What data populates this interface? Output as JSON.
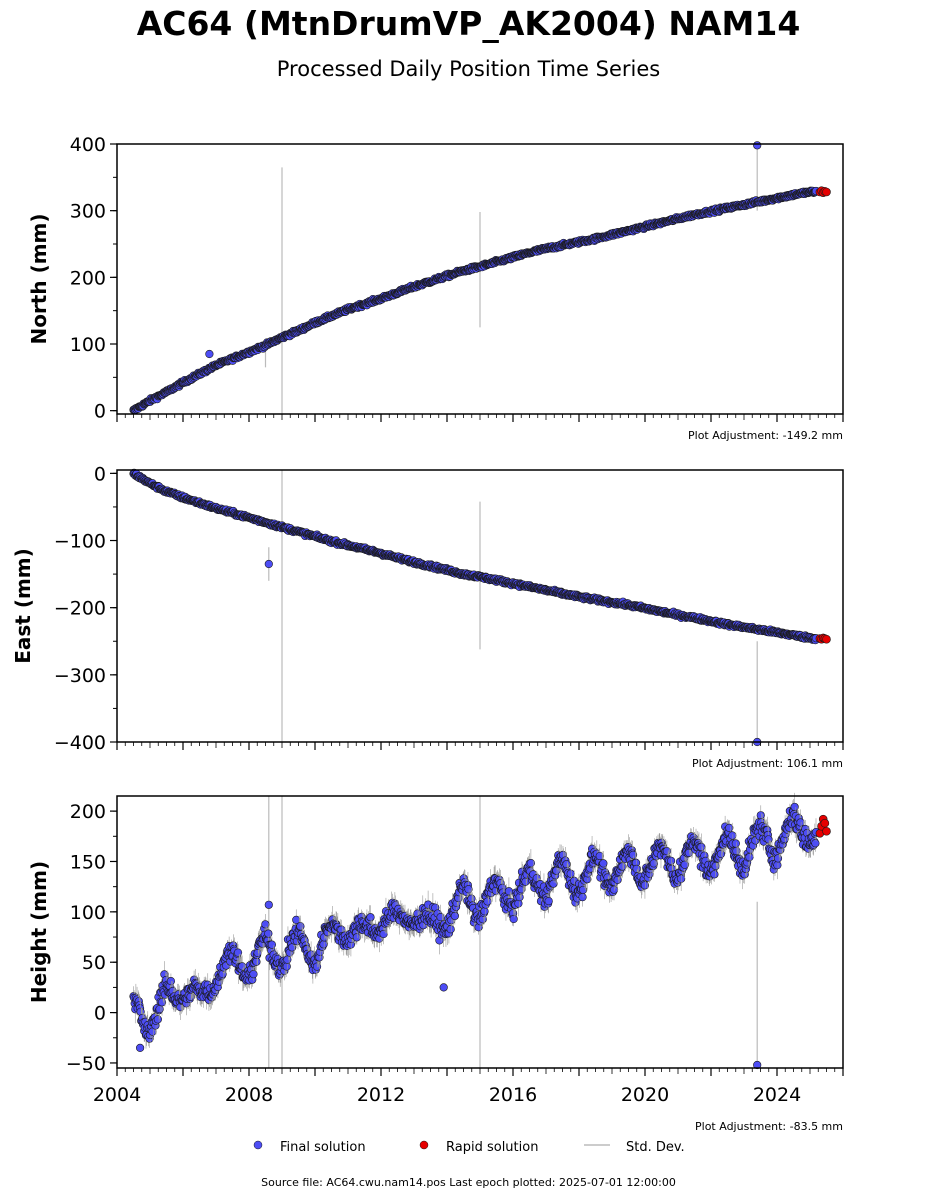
{
  "title": "AC64 (MtnDrumVP_AK2004) NAM14",
  "subtitle": "Processed Daily Position Time Series",
  "source_text": "Source file: AC64.cwu.nam14.pos  Last epoch plotted: 2025-07-01 12:00:00",
  "legend": {
    "final_label": "Final solution",
    "rapid_label": "Rapid solution",
    "std_label": "Std. Dev."
  },
  "colors": {
    "final": "#4d4df5",
    "rapid": "#e60000",
    "stddev": "#bbbbbb",
    "edge": "#1a1a1a"
  },
  "chart_data": [
    {
      "type": "scatter",
      "ylabel": "North (mm)",
      "adjustment": "Plot Adjustment: -149.2 mm",
      "xlim": [
        2004,
        2026
      ],
      "ylim": [
        -5,
        400
      ],
      "yticks": [
        0,
        100,
        200,
        300,
        400
      ],
      "xticks": [
        2004,
        2008,
        2012,
        2016,
        2020,
        2024
      ],
      "series": [
        {
          "name": "Final solution",
          "x": [
            2004.5,
            2005,
            2005.5,
            2006,
            2006.5,
            2007,
            2007.5,
            2008,
            2008.5,
            2009,
            2009.5,
            2010,
            2010.5,
            2011,
            2011.5,
            2012,
            2012.5,
            2013,
            2013.5,
            2014,
            2014.5,
            2015,
            2015.5,
            2016,
            2016.5,
            2017,
            2017.5,
            2018,
            2018.5,
            2019,
            2019.5,
            2020,
            2020.5,
            2021,
            2021.5,
            2022,
            2022.5,
            2023,
            2023.5,
            2024,
            2024.5,
            2025,
            2025.2
          ],
          "y": [
            0,
            15,
            28,
            42,
            55,
            68,
            78,
            88,
            98,
            110,
            120,
            132,
            142,
            152,
            160,
            168,
            177,
            186,
            194,
            202,
            210,
            216,
            223,
            230,
            237,
            243,
            248,
            253,
            258,
            264,
            270,
            276,
            282,
            288,
            294,
            299,
            304,
            309,
            314,
            319,
            324,
            328,
            328
          ]
        },
        {
          "name": "Rapid solution",
          "x": [
            2025.3,
            2025.35,
            2025.4,
            2025.45,
            2025.5
          ],
          "y": [
            328,
            330,
            327,
            329,
            328
          ]
        }
      ],
      "outliers": [
        {
          "x": 2006.8,
          "y": 85
        },
        {
          "x": 2023.4,
          "y": 398
        }
      ],
      "stddev_bars": [
        {
          "x": 2009.0,
          "low": -5,
          "high": 365
        },
        {
          "x": 2015.0,
          "low": 125,
          "high": 298
        },
        {
          "x": 2023.4,
          "low": 300,
          "high": 400
        },
        {
          "x": 2008.5,
          "low": 65,
          "high": 108
        }
      ]
    },
    {
      "type": "scatter",
      "ylabel": "East (mm)",
      "adjustment": "Plot Adjustment: 106.1 mm",
      "xlim": [
        2004,
        2026
      ],
      "ylim": [
        -400,
        5
      ],
      "yticks": [
        0,
        -100,
        -200,
        -300,
        -400
      ],
      "xticks": [
        2004,
        2008,
        2012,
        2016,
        2020,
        2024
      ],
      "series": [
        {
          "name": "Final solution",
          "x": [
            2004.5,
            2005,
            2005.5,
            2006,
            2006.5,
            2007,
            2007.5,
            2008,
            2008.5,
            2009,
            2009.5,
            2010,
            2010.5,
            2011,
            2011.5,
            2012,
            2012.5,
            2013,
            2013.5,
            2014,
            2014.5,
            2015,
            2015.5,
            2016,
            2016.5,
            2017,
            2017.5,
            2018,
            2018.5,
            2019,
            2019.5,
            2020,
            2020.5,
            2021,
            2021.5,
            2022,
            2022.5,
            2023,
            2023.5,
            2024,
            2024.5,
            2025,
            2025.2
          ],
          "y": [
            0,
            -15,
            -27,
            -36,
            -44,
            -52,
            -59,
            -66,
            -73,
            -80,
            -87,
            -94,
            -101,
            -107,
            -113,
            -119,
            -126,
            -132,
            -138,
            -144,
            -150,
            -154,
            -159,
            -164,
            -169,
            -174,
            -179,
            -184,
            -188,
            -192,
            -196,
            -201,
            -206,
            -211,
            -215,
            -220,
            -225,
            -229,
            -233,
            -237,
            -241,
            -245,
            -246
          ]
        },
        {
          "name": "Rapid solution",
          "x": [
            2025.3,
            2025.35,
            2025.4,
            2025.45,
            2025.5
          ],
          "y": [
            -246,
            -247,
            -245,
            -246,
            -247
          ]
        }
      ],
      "outliers": [
        {
          "x": 2008.6,
          "y": -135
        },
        {
          "x": 2023.4,
          "y": -400
        }
      ],
      "stddev_bars": [
        {
          "x": 2009.0,
          "low": -400,
          "high": 5
        },
        {
          "x": 2015.0,
          "low": -262,
          "high": -42
        },
        {
          "x": 2008.6,
          "low": -160,
          "high": -110
        },
        {
          "x": 2023.4,
          "low": -400,
          "high": -250
        }
      ]
    },
    {
      "type": "scatter",
      "ylabel": "Height (mm)",
      "adjustment": "Plot Adjustment: -83.5 mm",
      "xlim": [
        2004,
        2026
      ],
      "ylim": [
        -55,
        215
      ],
      "yticks": [
        -50,
        0,
        50,
        100,
        150,
        200
      ],
      "xticks": [
        2004,
        2008,
        2012,
        2016,
        2020,
        2024
      ],
      "series": [
        {
          "name": "Final solution",
          "x": [
            2004.5,
            2005,
            2005.5,
            2006,
            2006.5,
            2007,
            2007.5,
            2008,
            2008.5,
            2009,
            2009.5,
            2010,
            2010.5,
            2011,
            2011.5,
            2012,
            2012.5,
            2013,
            2013.5,
            2014,
            2014.5,
            2015,
            2015.5,
            2016,
            2016.5,
            2017,
            2017.5,
            2018,
            2018.5,
            2019,
            2019.5,
            2020,
            2020.5,
            2021,
            2021.5,
            2022,
            2022.5,
            2023,
            2023.5,
            2024,
            2024.5,
            2025,
            2025.2
          ],
          "y": [
            5,
            -10,
            15,
            25,
            10,
            40,
            50,
            45,
            65,
            55,
            70,
            60,
            80,
            85,
            75,
            95,
            90,
            100,
            85,
            95,
            115,
            105,
            120,
            115,
            130,
            125,
            140,
            130,
            145,
            135,
            150,
            140,
            155,
            145,
            160,
            150,
            165,
            155,
            175,
            165,
            185,
            180,
            178
          ]
        },
        {
          "name": "Rapid solution",
          "x": [
            2025.3,
            2025.35,
            2025.4,
            2025.45,
            2025.5
          ],
          "y": [
            178,
            185,
            192,
            188,
            180
          ]
        }
      ],
      "outliers": [
        {
          "x": 2004.7,
          "y": -35
        },
        {
          "x": 2008.6,
          "y": 107
        },
        {
          "x": 2013.9,
          "y": 25
        },
        {
          "x": 2023.4,
          "y": -52
        }
      ],
      "stddev_bars": [
        {
          "x": 2008.6,
          "low": -55,
          "high": 215
        },
        {
          "x": 2009.0,
          "low": -55,
          "high": 215
        },
        {
          "x": 2015.0,
          "low": -55,
          "high": 215
        },
        {
          "x": 2023.4,
          "low": -55,
          "high": 110
        }
      ]
    }
  ]
}
